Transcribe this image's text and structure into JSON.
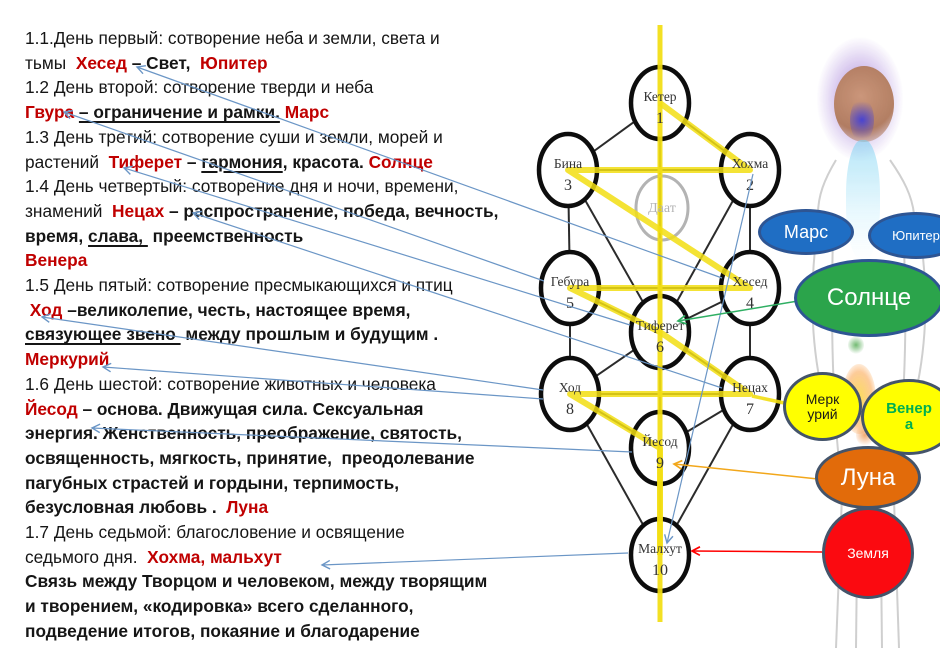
{
  "slide": {
    "background": "#ffffff"
  },
  "text_block": {
    "lines": [
      {
        "segments": [
          {
            "t": "1.1.День первый: сотворение неба и земли, света и",
            "s": "n"
          }
        ]
      },
      {
        "segments": [
          {
            "t": "тьмы ",
            "s": "n"
          },
          {
            "t": " Хесед ",
            "s": "rb"
          },
          {
            "t": "– Свет,  ",
            "s": "b"
          },
          {
            "t": "Юпитер",
            "s": "rb"
          }
        ]
      },
      {
        "segments": [
          {
            "t": "1.2 День второй: сотворение тверди и неба",
            "s": "n"
          }
        ]
      },
      {
        "segments": [
          {
            "t": "Гвура ",
            "s": "rb"
          },
          {
            "t": "– ограничение и рамки.",
            "s": "bu"
          },
          {
            "t": " ",
            "s": "b"
          },
          {
            "t": "Марс",
            "s": "rb"
          }
        ]
      },
      {
        "segments": [
          {
            "t": "1.3 День третий: сотворение суши и земли, морей и",
            "s": "n"
          }
        ]
      },
      {
        "segments": [
          {
            "t": "растений ",
            "s": "n"
          },
          {
            "t": " Тиферет ",
            "s": "rb"
          },
          {
            "t": "– ",
            "s": "b"
          },
          {
            "t": "гармония",
            "s": "bu"
          },
          {
            "t": ", красота. ",
            "s": "b"
          },
          {
            "t": "Солнце",
            "s": "rb"
          }
        ]
      },
      {
        "segments": [
          {
            "t": "1.4 День четвертый: сотворение дня и ночи, времени,",
            "s": "n"
          }
        ]
      },
      {
        "segments": [
          {
            "t": "знамений ",
            "s": "n"
          },
          {
            "t": " Нецах ",
            "s": "rb"
          },
          {
            "t": "– распространение, победа, вечность,",
            "s": "b"
          }
        ]
      },
      {
        "segments": [
          {
            "t": "время, ",
            "s": "b"
          },
          {
            "t": "слава, ",
            "s": "bu"
          },
          {
            "t": " преемственность",
            "s": "b"
          }
        ]
      },
      {
        "segments": [
          {
            "t": "Венера",
            "s": "rb"
          }
        ]
      },
      {
        "segments": [
          {
            "t": "1.5 День пятый: сотворение пресмыкающихся и птиц",
            "s": "n"
          }
        ]
      },
      {
        "segments": [
          {
            "t": " Ход ",
            "s": "rb"
          },
          {
            "t": "–великолепие, честь, настоящее время,",
            "s": "b"
          }
        ]
      },
      {
        "segments": [
          {
            "t": "связующее звено ",
            "s": "bu"
          },
          {
            "t": " между прошлым и будущим .",
            "s": "b"
          }
        ]
      },
      {
        "segments": [
          {
            "t": "Меркурий",
            "s": "rb"
          }
        ]
      },
      {
        "segments": [
          {
            "t": "1.6 День шестой: сотворение животных и человека",
            "s": "n"
          }
        ]
      },
      {
        "segments": [
          {
            "t": "Йесод ",
            "s": "rb"
          },
          {
            "t": "– основа. Движущая сила. Сексуальная",
            "s": "b"
          }
        ]
      },
      {
        "segments": [
          {
            "t": "энергия. Женственность, преображение, святость,",
            "s": "b"
          }
        ]
      },
      {
        "segments": [
          {
            "t": "освященность, мягкость, принятие,  преодолевание",
            "s": "b"
          }
        ]
      },
      {
        "segments": [
          {
            "t": "пагубных страстей и гордыни, терпимость,",
            "s": "b"
          }
        ]
      },
      {
        "segments": [
          {
            "t": "безусловная любовь . ",
            "s": "b"
          },
          {
            "t": " Луна",
            "s": "rb"
          }
        ]
      },
      {
        "segments": [
          {
            "t": "1.7 День седьмой: благословение и освящение",
            "s": "n"
          }
        ]
      },
      {
        "segments": [
          {
            "t": "седьмого дня. ",
            "s": "n"
          },
          {
            "t": " Хохма, мальхут",
            "s": "rb"
          }
        ]
      },
      {
        "segments": [
          {
            "t": "Связь между Творцом и человеком, между творящим",
            "s": "b"
          }
        ]
      },
      {
        "segments": [
          {
            "t": "и творением, «кодировка» всего сделанного,",
            "s": "b"
          }
        ]
      },
      {
        "segments": [
          {
            "t": "подведение итогов, покаяние и благодарение",
            "s": "b"
          }
        ]
      }
    ]
  },
  "tree": {
    "nodes": [
      {
        "id": "keter",
        "label": "Кетер",
        "number": "1"
      },
      {
        "id": "hokhmah",
        "label": "Хохма",
        "number": "2"
      },
      {
        "id": "binah",
        "label": "Бина",
        "number": "3"
      },
      {
        "id": "hesed",
        "label": "Хесед",
        "number": "4"
      },
      {
        "id": "gevurah",
        "label": "Гебура",
        "number": "5"
      },
      {
        "id": "tiferet",
        "label": "Тиферет",
        "number": "6"
      },
      {
        "id": "netzach",
        "label": "Нецах",
        "number": "7"
      },
      {
        "id": "hod",
        "label": "Ход",
        "number": "8"
      },
      {
        "id": "yesod",
        "label": "Йесод",
        "number": "9"
      },
      {
        "id": "malkhut",
        "label": "Малхут",
        "number": "10"
      }
    ],
    "daat": {
      "label": "Даат"
    }
  },
  "planets": [
    {
      "id": "mars",
      "label": "Марс",
      "fill": "#1F6EC4",
      "border": "#2E5593",
      "text": "#FFFFFF"
    },
    {
      "id": "jupiter",
      "label": "Юпитер",
      "fill": "#1F6EC4",
      "border": "#2E5593",
      "text": "#FFFFFF"
    },
    {
      "id": "sun",
      "label": "Солнце",
      "fill": "#2BA44B",
      "border": "#2E5593",
      "text": "#FFFFFF"
    },
    {
      "id": "mercury",
      "label": "Меркурий",
      "display_lines": [
        "Мерк",
        "урий"
      ],
      "fill": "#FFFF00",
      "border": "#44546A",
      "text": "#1A1A1A"
    },
    {
      "id": "venus",
      "label": "Венера",
      "display_lines": [
        "Венер",
        "а"
      ],
      "fill": "#FFFF00",
      "border": "#44546A",
      "text": "#00B050"
    },
    {
      "id": "moon",
      "label": "Луна",
      "fill": "#E26B0A",
      "border": "#44546A",
      "text": "#FFFFFF"
    },
    {
      "id": "earth",
      "label": "Земля",
      "fill": "#FB0A10",
      "border": "#44546A",
      "text": "#FFFFFF"
    }
  ],
  "colors": {
    "accent_red_text": "#C00000",
    "lightning_yellow": "#F2DE12",
    "tree_edge": "#2B2B2B",
    "node_stroke": "#0D0D0D",
    "daat_gray": "#B3B3B3",
    "connector_blue": "#6B96C6",
    "connector_green": "#2FAF63",
    "connector_orange": "#F2A71B",
    "connector_red": "#FF0000"
  }
}
